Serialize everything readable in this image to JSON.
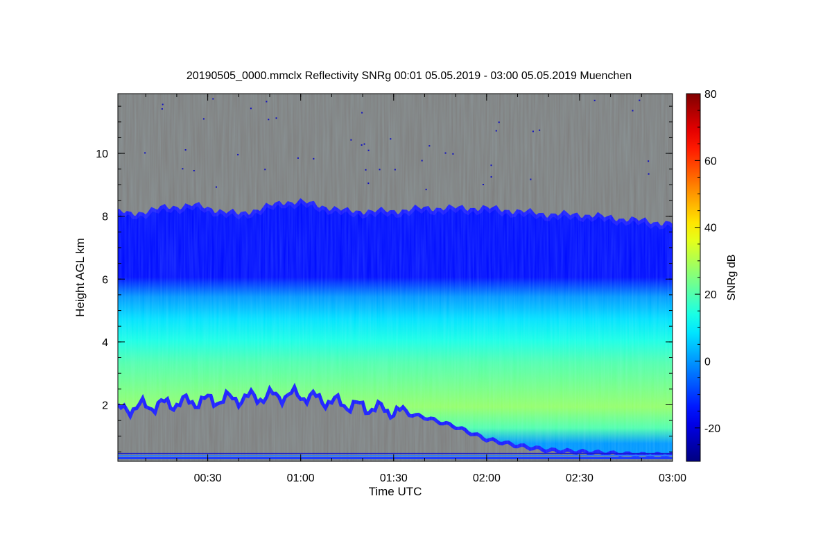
{
  "chart_data": {
    "type": "heatmap",
    "title": "20190505_0000.mmclx Reflectivity SNRg   00:01 05.05.2019 - 03:00 05.05.2019 Muenchen",
    "xlabel": "Time UTC",
    "ylabel": "Height AGL km",
    "colorbar_label": "SNRg dB",
    "x_ticks": [
      "00:30",
      "01:00",
      "01:30",
      "02:00",
      "02:30",
      "03:00"
    ],
    "x_tick_minutes": [
      30,
      60,
      90,
      120,
      150,
      180
    ],
    "xlim_minutes": [
      1,
      180
    ],
    "y_ticks": [
      2,
      4,
      6,
      8,
      10
    ],
    "ylim": [
      0.2,
      11.9
    ],
    "colorbar_ticks": [
      -20,
      0,
      20,
      40,
      60,
      80
    ],
    "colorbar_range": [
      -30,
      80
    ],
    "colormap": [
      "#00007f",
      "#0000ff",
      "#00ffff",
      "#ffff00",
      "#ff0000",
      "#7f0000"
    ],
    "background_color": "#808080",
    "echo_field": {
      "time_minutes": [
        1,
        5,
        15,
        25,
        40,
        55,
        60,
        75,
        90,
        100,
        110,
        120,
        130,
        140,
        150,
        160,
        170,
        180
      ],
      "echo_top_km": [
        8.1,
        8.0,
        8.2,
        8.3,
        8.0,
        8.4,
        8.4,
        8.1,
        8.1,
        8.2,
        8.2,
        8.2,
        8.1,
        8.0,
        8.0,
        7.9,
        7.8,
        7.7
      ],
      "echo_base_km": [
        1.8,
        1.9,
        2.0,
        2.1,
        2.2,
        2.3,
        2.3,
        2.0,
        1.8,
        1.6,
        1.3,
        0.9,
        0.7,
        0.55,
        0.5,
        0.45,
        0.4,
        0.4
      ],
      "max_snr_height_km": [
        3.0,
        3.0,
        3.0,
        3.0,
        2.9,
        2.8,
        2.8,
        2.7,
        2.6,
        2.5,
        2.3,
        2.2,
        2.1,
        2.0,
        2.0,
        1.9,
        1.9,
        1.8
      ],
      "max_snr_db": [
        22,
        24,
        25,
        26,
        27,
        27,
        27,
        28,
        30,
        31,
        32,
        33,
        32,
        30,
        28,
        26,
        24,
        22
      ]
    }
  }
}
